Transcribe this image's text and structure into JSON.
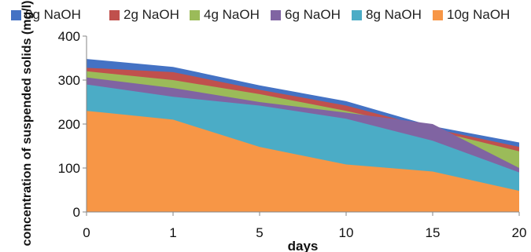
{
  "chart_data": {
    "type": "area",
    "x": [
      "0",
      "1",
      "5",
      "10",
      "15",
      "20"
    ],
    "xlabel": "days",
    "ylabel": "concentration of suspended solids (mg/l)",
    "ylim": [
      0,
      400
    ],
    "yticks": [
      "0",
      "100",
      "200",
      "300",
      "400"
    ],
    "grid": false,
    "legend_position": "top",
    "series": [
      {
        "name": "0g NaOH",
        "color": "#4472C4",
        "values": [
          348,
          330,
          288,
          252,
          195,
          158
        ]
      },
      {
        "name": "2g NaOH",
        "color": "#C0504D",
        "values": [
          328,
          318,
          278,
          242,
          190,
          148
        ]
      },
      {
        "name": "4g NaOH",
        "color": "#9BBB59",
        "values": [
          320,
          300,
          268,
          230,
          186,
          138
        ]
      },
      {
        "name": "6g NaOH",
        "color": "#8064A2",
        "values": [
          306,
          282,
          250,
          226,
          200,
          100
        ]
      },
      {
        "name": "8g NaOH",
        "color": "#4BACC6",
        "values": [
          290,
          262,
          242,
          212,
          162,
          90
        ]
      },
      {
        "name": "10g NaOH",
        "color": "#F79646",
        "values": [
          230,
          210,
          148,
          108,
          92,
          48
        ]
      }
    ]
  }
}
